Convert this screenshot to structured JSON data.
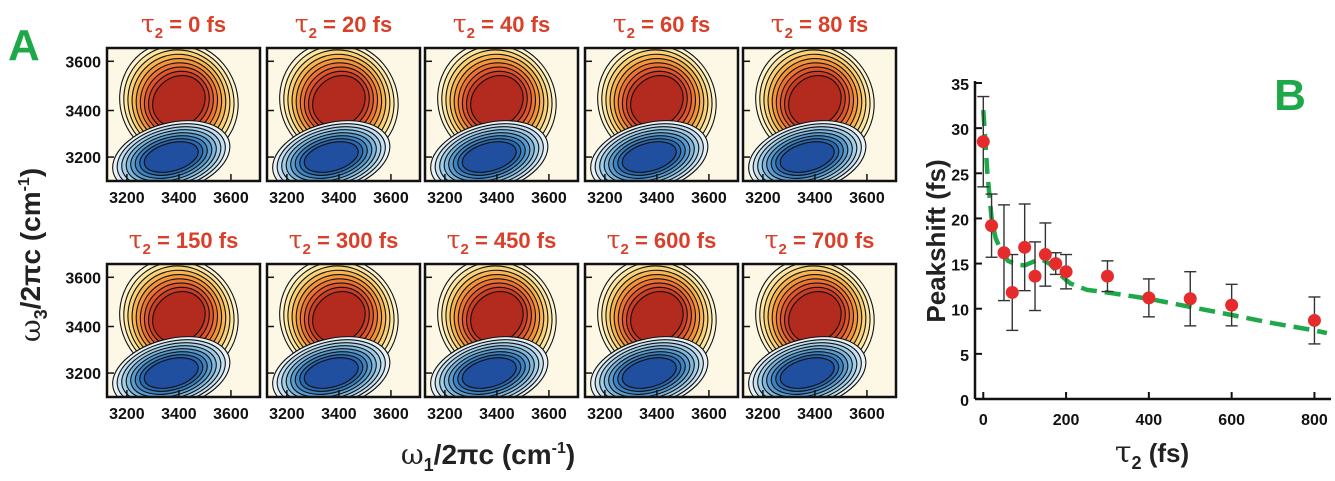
{
  "panel_a": {
    "letter": "A",
    "ylabel_prefix": "ω",
    "ylabel_sub": "3",
    "ylabel_mid": "/2πc (cm",
    "ylabel_sup": "-1",
    "ylabel_end": ")",
    "xlabel_prefix": "ω",
    "xlabel_sub": "1",
    "xlabel_mid": "/2πc (cm",
    "xlabel_sup": "-1",
    "xlabel_end": ")",
    "x_ticks": [
      "3200",
      "3400",
      "3600"
    ],
    "y_ticks": [
      "3600",
      "3400",
      "3200"
    ],
    "colors": {
      "title": "#d9402a",
      "positive_peak": "#b32a1e",
      "negative_peak": "#1f4f9e"
    },
    "subplots": [
      {
        "tau_sym": "τ",
        "tau_sub": "2",
        "tau_text": " = 0 fs"
      },
      {
        "tau_sym": "τ",
        "tau_sub": "2",
        "tau_text": " = 20 fs"
      },
      {
        "tau_sym": "τ",
        "tau_sub": "2",
        "tau_text": " = 40 fs"
      },
      {
        "tau_sym": "τ",
        "tau_sub": "2",
        "tau_text": " = 60 fs"
      },
      {
        "tau_sym": "τ",
        "tau_sub": "2",
        "tau_text": " = 80 fs"
      },
      {
        "tau_sym": "τ",
        "tau_sub": "2",
        "tau_text": " = 150 fs"
      },
      {
        "tau_sym": "τ",
        "tau_sub": "2",
        "tau_text": " = 300 fs"
      },
      {
        "tau_sym": "τ",
        "tau_sub": "2",
        "tau_text": " = 450 fs"
      },
      {
        "tau_sym": "τ",
        "tau_sub": "2",
        "tau_text": " = 600 fs"
      },
      {
        "tau_sym": "τ",
        "tau_sub": "2",
        "tau_text": " = 700 fs"
      }
    ]
  },
  "chart_data": {
    "type": "scatter",
    "letter": "B",
    "ylabel": "Peakshift (fs)",
    "xlabel_sym": "τ",
    "xlabel_sub": "2",
    "xlabel_end": " (fs)",
    "xlim": [
      -20,
      840
    ],
    "ylim": [
      0,
      35
    ],
    "x_ticks": [
      0,
      200,
      400,
      600,
      800
    ],
    "y_ticks": [
      0,
      5,
      10,
      15,
      20,
      25,
      30,
      35
    ],
    "grid": false,
    "colors": {
      "points": "#e52b2b",
      "fit": "#1fa84a",
      "letter": "#1fa84a"
    },
    "points": [
      {
        "x": 0,
        "y": 28.5,
        "err": 5.0
      },
      {
        "x": 20,
        "y": 19.2,
        "err": 3.5
      },
      {
        "x": 50,
        "y": 16.2,
        "err": 5.3
      },
      {
        "x": 70,
        "y": 11.8,
        "err": 4.2
      },
      {
        "x": 100,
        "y": 16.8,
        "err": 4.8
      },
      {
        "x": 125,
        "y": 13.6,
        "err": 3.8
      },
      {
        "x": 150,
        "y": 16.0,
        "err": 3.5
      },
      {
        "x": 175,
        "y": 15.0,
        "err": 1.2
      },
      {
        "x": 200,
        "y": 14.1,
        "err": 1.9
      },
      {
        "x": 300,
        "y": 13.6,
        "err": 1.7
      },
      {
        "x": 400,
        "y": 11.2,
        "err": 2.1
      },
      {
        "x": 500,
        "y": 11.1,
        "err": 3.0
      },
      {
        "x": 600,
        "y": 10.4,
        "err": 2.3
      },
      {
        "x": 800,
        "y": 8.7,
        "err": 2.6
      }
    ],
    "fit": [
      [
        0,
        32
      ],
      [
        10,
        25
      ],
      [
        20,
        20
      ],
      [
        30,
        17.8
      ],
      [
        45,
        16.2
      ],
      [
        60,
        15.3
      ],
      [
        80,
        14.9
      ],
      [
        100,
        14.8
      ],
      [
        120,
        15.2
      ],
      [
        140,
        15.5
      ],
      [
        160,
        15.0
      ],
      [
        180,
        14.0
      ],
      [
        210,
        12.8
      ],
      [
        250,
        12.1
      ],
      [
        300,
        11.8
      ],
      [
        400,
        11.1
      ],
      [
        500,
        10.2
      ],
      [
        600,
        9.3
      ],
      [
        700,
        8.4
      ],
      [
        800,
        7.6
      ],
      [
        830,
        7.3
      ]
    ]
  }
}
